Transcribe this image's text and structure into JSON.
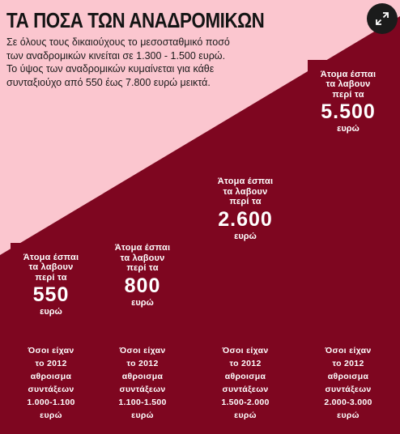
{
  "header": {
    "title": "ΤΑ ΠΟΣΑ ΤΩΝ ΑΝΑΔΡΟΜΙΚΩΝ",
    "subtitle_lines": [
      "Σε όλους τους δικαιούχους το μεσοσταθμικό ποσό",
      "των αναδρομικών κινείται σε 1.300 - 1.500 ευρώ.",
      "Το ύψος των αναδρομικών κυμαίνεται για κάθε",
      "συνταξιούχο από 550 έως 7.800 ευρώ μεικτά."
    ]
  },
  "expand_icon": "expand-arrows-icon",
  "colors": {
    "background": "#fbc6cf",
    "bar": "#7e0620",
    "text_on_bar": "#ffffff",
    "triangle": "#7e0620"
  },
  "chart_data": {
    "type": "bar",
    "title": "ΤΑ ΠΟΣΑ ΤΩΝ ΑΝΑΔΡΟΜΙΚΩΝ",
    "ylim": [
      0,
      7000
    ],
    "series": [
      {
        "values": [
          550,
          800,
          2600,
          5500
        ]
      }
    ],
    "bars": [
      {
        "value": 550,
        "label_top": [
          "Άτομα έσπαι",
          "τα λαβουν",
          "περί τα"
        ],
        "value_text": "550",
        "unit": "ευρώ",
        "pre2012": [
          "Όσοι είχαν",
          "το 2012",
          "αθροισμα",
          "συντάξεων",
          "1.000-1.100",
          "ευρώ"
        ]
      },
      {
        "value": 800,
        "label_top": [
          "Άτομα έσπαι",
          "τα λαβουν",
          "περί τα"
        ],
        "value_text": "800",
        "unit": "ευρώ",
        "pre2012": [
          "Όσοι είχαν",
          "το 2012",
          "αθροισμα",
          "συντάξεων",
          "1.100-1.500",
          "ευρώ"
        ]
      },
      {
        "value": 2600,
        "label_top": [
          "Άτομα έσπαι",
          "τα λαβουν",
          "περί τα"
        ],
        "value_text": "2.600",
        "unit": "ευρώ",
        "pre2012": [
          "Όσοι είχαν",
          "το 2012",
          "αθροισμα",
          "συντάξεων",
          "1.500-2.000",
          "ευρώ"
        ]
      },
      {
        "value": 5500,
        "label_top": [
          "Άτομα έσπαι",
          "τα λαβουν",
          "περί τα"
        ],
        "value_text": "5.500",
        "unit": "ευρώ",
        "pre2012": [
          "Όσοι είχαν",
          "το 2012",
          "αθροισμα",
          "συντάξεων",
          "2.000-3.000",
          "ευρώ"
        ]
      }
    ]
  }
}
